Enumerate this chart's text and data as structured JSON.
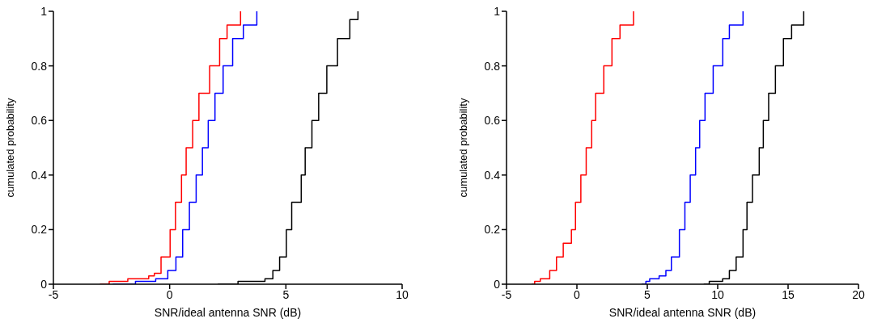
{
  "chart_data": [
    {
      "type": "step",
      "xlabel": "SNR/ideal antenna SNR (dB)",
      "ylabel": "cumulated probability",
      "xlim": [
        -5,
        10
      ],
      "xticks": [
        -5,
        0,
        5,
        10
      ],
      "ylim": [
        0,
        1
      ],
      "yticks": [
        0,
        0.2,
        0.4,
        0.6,
        0.8,
        1
      ],
      "series": [
        {
          "color": "#ff0000",
          "x": [
            -3.0,
            -2.6,
            -1.8,
            -0.9,
            -0.66,
            -0.37,
            0.02,
            0.25,
            0.51,
            0.71,
            0.99,
            1.26,
            1.72,
            2.15,
            2.47,
            3.05
          ],
          "values": [
            0,
            0.01,
            0.02,
            0.03,
            0.04,
            0.1,
            0.2,
            0.3,
            0.4,
            0.5,
            0.6,
            0.7,
            0.8,
            0.9,
            0.95,
            1
          ]
        },
        {
          "color": "#0000ff",
          "x": [
            -2.45,
            -1.47,
            -0.6,
            -0.08,
            0.27,
            0.56,
            0.85,
            1.14,
            1.41,
            1.66,
            1.95,
            2.3,
            2.71,
            3.17,
            3.75
          ],
          "values": [
            0,
            0.01,
            0.02,
            0.05,
            0.1,
            0.2,
            0.3,
            0.4,
            0.5,
            0.6,
            0.7,
            0.8,
            0.9,
            0.95,
            1
          ]
        },
        {
          "color": "#000000",
          "x": [
            2.07,
            2.94,
            4.1,
            4.44,
            4.73,
            5.02,
            5.25,
            5.66,
            5.83,
            6.12,
            6.41,
            6.76,
            7.22,
            7.75,
            8.1
          ],
          "values": [
            0,
            0.01,
            0.02,
            0.05,
            0.1,
            0.2,
            0.3,
            0.4,
            0.5,
            0.6,
            0.7,
            0.8,
            0.9,
            0.97,
            1
          ]
        }
      ]
    },
    {
      "type": "step",
      "xlabel": "SNR/ideal antenna SNR (dB)",
      "ylabel": "cumulated probability",
      "xlim": [
        -5,
        20
      ],
      "xticks": [
        -5,
        0,
        5,
        10,
        15,
        20
      ],
      "ylim": [
        0,
        1
      ],
      "yticks": [
        0,
        0.2,
        0.4,
        0.6,
        0.8,
        1
      ],
      "series": [
        {
          "color": "#ff0000",
          "x": [
            -3.2,
            -3.0,
            -2.6,
            -1.93,
            -1.45,
            -0.97,
            -0.39,
            -0.1,
            0.28,
            0.66,
            1.05,
            1.33,
            1.91,
            2.49,
            3.06,
            4.02
          ],
          "values": [
            0,
            0.01,
            0.02,
            0.05,
            0.1,
            0.15,
            0.2,
            0.3,
            0.4,
            0.5,
            0.6,
            0.7,
            0.8,
            0.9,
            0.95,
            1
          ]
        },
        {
          "color": "#0000ff",
          "x": [
            4.6,
            4.9,
            5.17,
            5.84,
            6.32,
            6.71,
            7.28,
            7.67,
            8.05,
            8.43,
            8.72,
            9.1,
            9.68,
            10.36,
            10.83,
            11.8
          ],
          "values": [
            0,
            0.01,
            0.02,
            0.03,
            0.05,
            0.1,
            0.2,
            0.3,
            0.4,
            0.5,
            0.6,
            0.7,
            0.8,
            0.9,
            0.95,
            1
          ]
        },
        {
          "color": "#000000",
          "x": [
            9.01,
            9.4,
            10.35,
            10.83,
            11.31,
            11.8,
            12.08,
            12.47,
            12.95,
            13.24,
            13.62,
            14.1,
            14.67,
            15.25,
            16.11
          ],
          "values": [
            0,
            0.01,
            0.02,
            0.05,
            0.1,
            0.2,
            0.3,
            0.4,
            0.5,
            0.6,
            0.7,
            0.8,
            0.9,
            0.95,
            1
          ]
        }
      ]
    }
  ]
}
